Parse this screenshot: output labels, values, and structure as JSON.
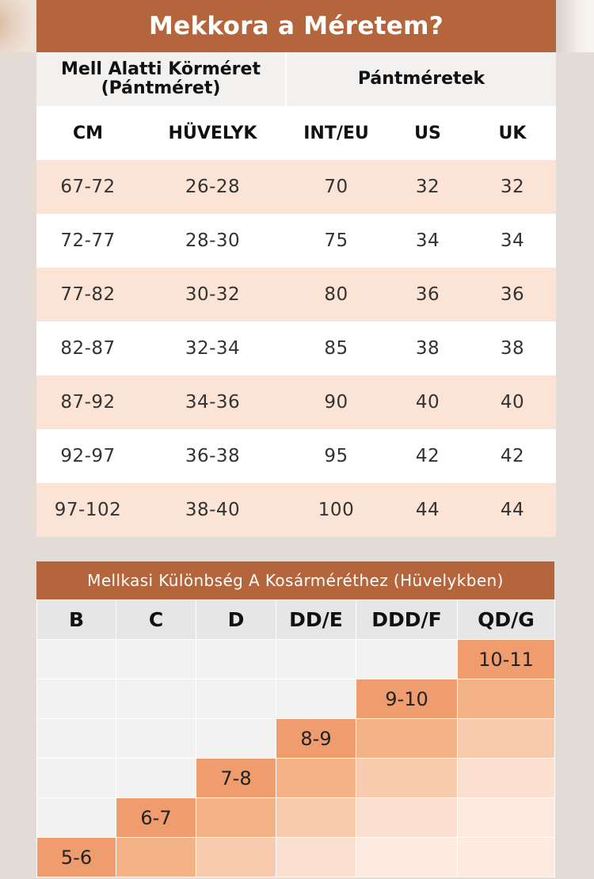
{
  "title": "Mekkora a Méretem?",
  "band_table": {
    "group_headers": [
      "Mell Alatti Körméret\n(Pántméret)",
      "Pántméretek"
    ],
    "column_headers": [
      "CM",
      "HÜVELYK",
      "INT/EU",
      "US",
      "UK"
    ],
    "rows": [
      [
        "67-72",
        "26-28",
        "70",
        "32",
        "32"
      ],
      [
        "72-77",
        "28-30",
        "75",
        "34",
        "34"
      ],
      [
        "77-82",
        "30-32",
        "80",
        "36",
        "36"
      ],
      [
        "82-87",
        "32-34",
        "85",
        "38",
        "38"
      ],
      [
        "87-92",
        "34-36",
        "90",
        "40",
        "40"
      ],
      [
        "92-97",
        "36-38",
        "95",
        "42",
        "42"
      ],
      [
        "97-102",
        "38-40",
        "100",
        "44",
        "44"
      ]
    ]
  },
  "cup_table": {
    "title": "Mellkasi Különbség A Kosárméréthez (Hüvelykben)",
    "column_headers": [
      "B",
      "C",
      "D",
      "DD/E",
      "DDD/F",
      "QD/G"
    ],
    "ranges": [
      "5-6",
      "6-7",
      "7-8",
      "8-9",
      "9-10",
      "10-11"
    ]
  }
}
